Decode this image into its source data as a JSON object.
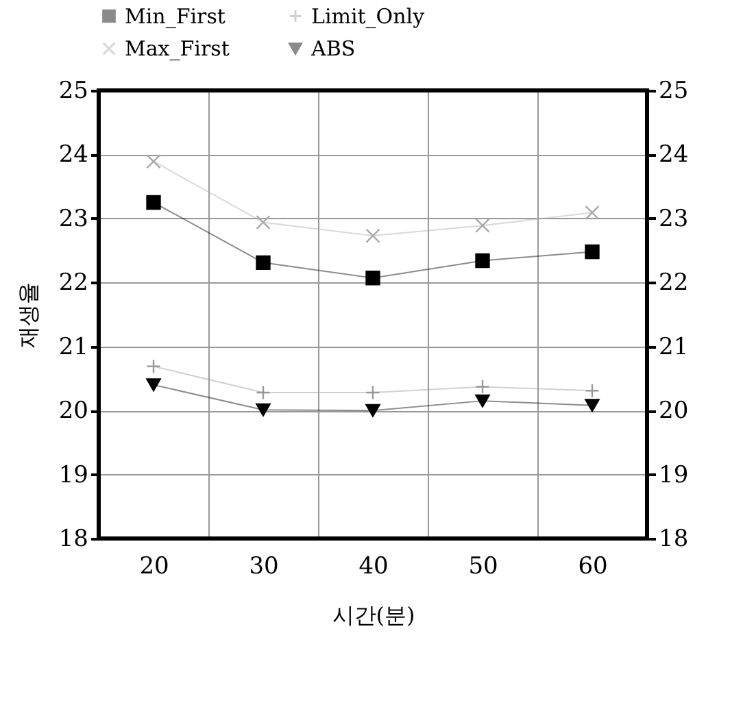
{
  "chart_data": {
    "type": "line",
    "xlabel": "시간(분)",
    "ylabel": "재생율",
    "categories": [
      "20",
      "30",
      "40",
      "50",
      "60"
    ],
    "series": [
      {
        "name": "Min_First",
        "color": "#000000",
        "marker": "square",
        "values": [
          23.25,
          22.31,
          22.07,
          22.34,
          22.48
        ]
      },
      {
        "name": "Limit_Only",
        "color": "#999999",
        "marker": "plus",
        "values": [
          20.69,
          20.28,
          20.28,
          20.37,
          20.31
        ]
      },
      {
        "name": "Max_First",
        "color": "#aaaaaa",
        "marker": "cross",
        "values": [
          23.89,
          22.94,
          22.73,
          22.89,
          23.09
        ]
      },
      {
        "name": "ABS",
        "color": "#000000",
        "marker": "triangle-down",
        "values": [
          20.4,
          20.01,
          20.0,
          20.15,
          20.08
        ]
      }
    ],
    "ylim": [
      18,
      25
    ],
    "yticks": [
      18,
      19,
      20,
      21,
      22,
      23,
      24,
      25
    ],
    "y2lim": [
      18,
      25
    ],
    "y2ticks": [
      18,
      19,
      20,
      21,
      22,
      23,
      24,
      25
    ],
    "grid": true,
    "legend": "top",
    "line_style": "solid"
  }
}
